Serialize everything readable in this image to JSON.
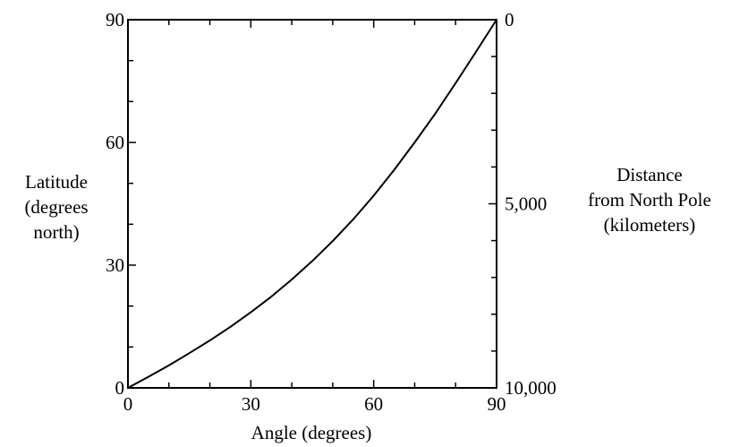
{
  "chart_data": {
    "type": "line",
    "title": "",
    "xlabel": "Angle (degrees)",
    "ylabel_left": [
      "Latitude",
      "(degrees",
      "north)"
    ],
    "ylabel_right": [
      "Distance",
      "from North Pole",
      "(kilometers)"
    ],
    "xlim": [
      0,
      90
    ],
    "ylim": [
      0,
      90
    ],
    "y2lim": [
      10000,
      0
    ],
    "x_ticks": [
      {
        "value": 0,
        "label": "0"
      },
      {
        "value": 30,
        "label": "30"
      },
      {
        "value": 60,
        "label": "60"
      },
      {
        "value": 90,
        "label": "90"
      }
    ],
    "y_ticks": [
      {
        "value": 0,
        "label": "0"
      },
      {
        "value": 30,
        "label": "30"
      },
      {
        "value": 60,
        "label": "60"
      },
      {
        "value": 90,
        "label": "90"
      }
    ],
    "y2_ticks": [
      {
        "value": 0,
        "label": "0"
      },
      {
        "value": 5000,
        "label": "5,000"
      },
      {
        "value": 10000,
        "label": "10,000"
      }
    ],
    "x_minor_step": 10,
    "y_minor_step": 10,
    "y2_minor_step": 1000,
    "grid": false,
    "series": [
      {
        "x": [
          0,
          5,
          10,
          15,
          20,
          25,
          30,
          35,
          40,
          45,
          50,
          55,
          60,
          65,
          70,
          75,
          80,
          85,
          90
        ],
        "y": [
          0,
          2.7,
          5.5,
          8.5,
          11.6,
          14.9,
          18.5,
          22.3,
          26.5,
          31.0,
          35.9,
          41.2,
          47.0,
          53.3,
          60.0,
          67.0,
          74.5,
          82.2,
          90
        ]
      }
    ]
  }
}
